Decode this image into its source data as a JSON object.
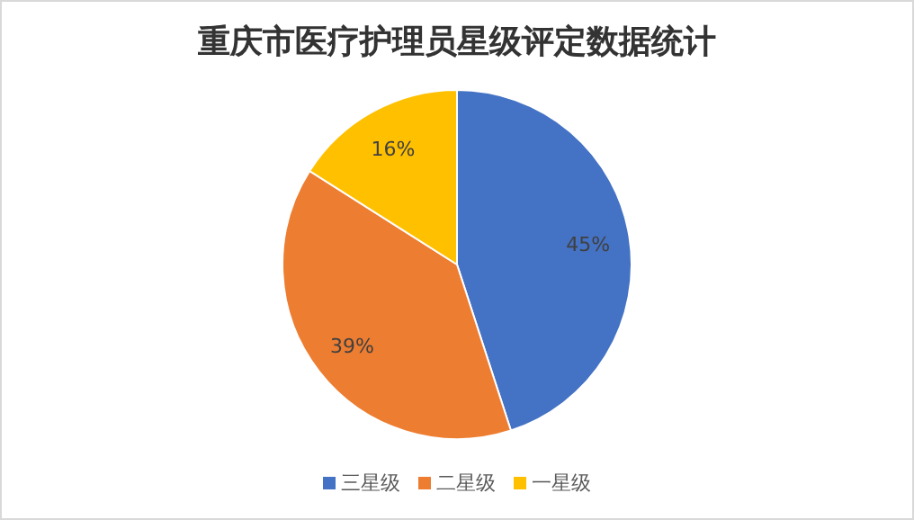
{
  "chart_data": {
    "type": "pie",
    "title": "重庆市医疗护理员星级评定数据统计",
    "categories": [
      "三星级",
      "二星级",
      "一星级"
    ],
    "values": [
      45,
      39,
      16
    ],
    "colors": [
      "#4472c4",
      "#ed7d31",
      "#ffc000"
    ],
    "value_labels": [
      "45%",
      "39%",
      "16%"
    ],
    "legend": "bottom"
  }
}
